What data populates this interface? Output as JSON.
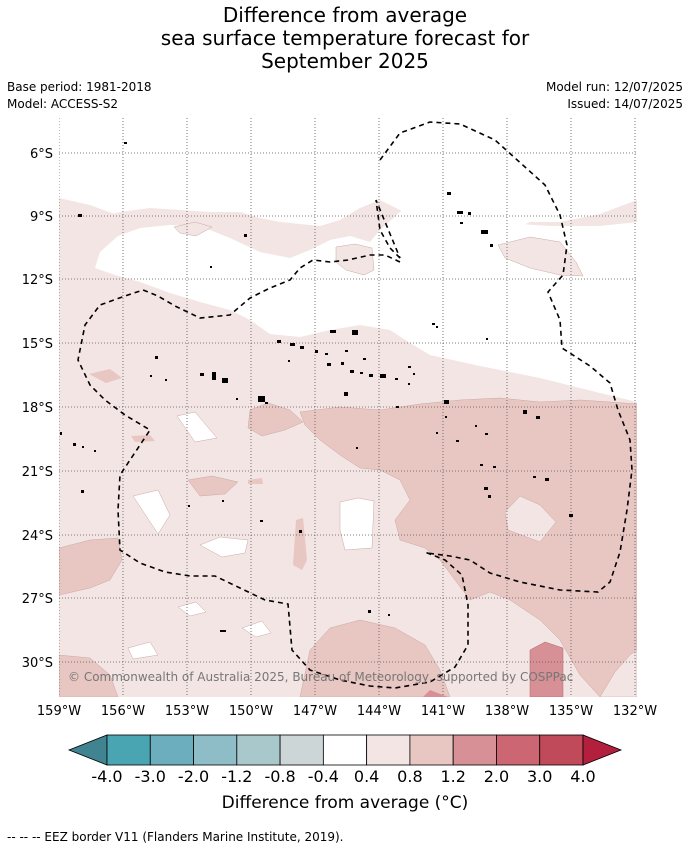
{
  "title": {
    "line1": "Difference from average",
    "line2": "sea surface temperature forecast for",
    "line3": "September 2025"
  },
  "meta": {
    "base_period": "Base period: 1981-2018",
    "model": "Model: ACCESS-S2",
    "model_run": "Model run: 12/07/2025",
    "issued": "Issued: 14/07/2025"
  },
  "map": {
    "lat_labels": [
      "6°S",
      "9°S",
      "12°S",
      "15°S",
      "18°S",
      "21°S",
      "24°S",
      "27°S",
      "30°S"
    ],
    "lon_labels": [
      "159°W",
      "156°W",
      "153°W",
      "150°W",
      "147°W",
      "144°W",
      "141°W",
      "138°W",
      "135°W",
      "132°W"
    ],
    "copyright": "© Commonwealth of Australia 2025, Bureau of Meteorology, supported by COSPPac"
  },
  "colorbar": {
    "title": "Difference from average (°C)",
    "labels": [
      "-4.0",
      "-3.0",
      "-2.0",
      "-1.2",
      "-0.8",
      "-0.4",
      "0.4",
      "0.8",
      "1.2",
      "2.0",
      "3.0",
      "4.0"
    ],
    "colors": [
      "#3f8490",
      "#4aa5b3",
      "#6caebd",
      "#8ebdc7",
      "#a9c8cc",
      "#cdd6d7",
      "#ffffff",
      "#f3e5e3",
      "#e8c6c2",
      "#d69096",
      "#cc6672",
      "#c14a5a",
      "#b2203e"
    ]
  },
  "footnote": "--  --  -- EEZ border V11 (Flanders Marine Institute, 2019)."
}
